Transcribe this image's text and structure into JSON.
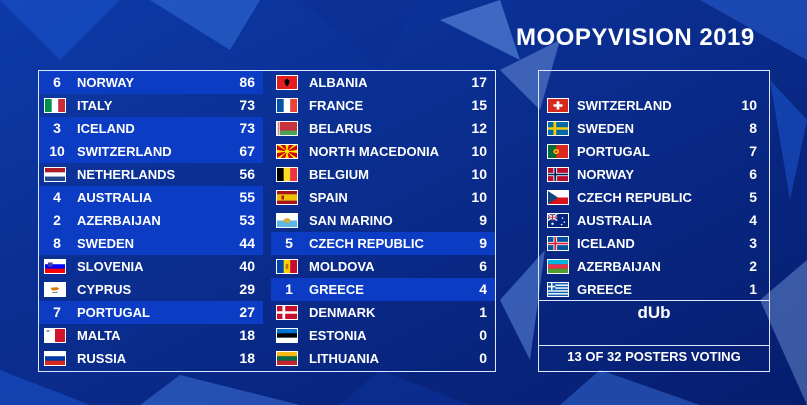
{
  "title": "MOOPYVISION 2019",
  "scoreboard": [
    {
      "country": "NORWAY",
      "score": "86",
      "points_received": "6",
      "highlight": true,
      "flag": "norway-flag"
    },
    {
      "country": "ITALY",
      "score": "73",
      "points_received": "",
      "highlight": false,
      "flag": "italy-flag"
    },
    {
      "country": "ICELAND",
      "score": "73",
      "points_received": "3",
      "highlight": true,
      "flag": "iceland-flag"
    },
    {
      "country": "SWITZERLAND",
      "score": "67",
      "points_received": "10",
      "highlight": true,
      "flag": "switzerland-flag"
    },
    {
      "country": "NETHERLANDS",
      "score": "56",
      "points_received": "",
      "highlight": false,
      "flag": "netherlands-flag"
    },
    {
      "country": "AUSTRALIA",
      "score": "55",
      "points_received": "4",
      "highlight": true,
      "flag": "australia-flag"
    },
    {
      "country": "AZERBAIJAN",
      "score": "53",
      "points_received": "2",
      "highlight": true,
      "flag": "azerbaijan-flag"
    },
    {
      "country": "SWEDEN",
      "score": "44",
      "points_received": "8",
      "highlight": true,
      "flag": "sweden-flag"
    },
    {
      "country": "SLOVENIA",
      "score": "40",
      "points_received": "",
      "highlight": false,
      "flag": "slovenia-flag"
    },
    {
      "country": "CYPRUS",
      "score": "29",
      "points_received": "",
      "highlight": false,
      "flag": "cyprus-flag"
    },
    {
      "country": "PORTUGAL",
      "score": "27",
      "points_received": "7",
      "highlight": true,
      "flag": "portugal-flag"
    },
    {
      "country": "MALTA",
      "score": "18",
      "points_received": "",
      "highlight": false,
      "flag": "malta-flag"
    },
    {
      "country": "RUSSIA",
      "score": "18",
      "points_received": "",
      "highlight": false,
      "flag": "russia-flag"
    },
    {
      "country": "ALBANIA",
      "score": "17",
      "points_received": "",
      "highlight": false,
      "flag": "albania-flag"
    },
    {
      "country": "FRANCE",
      "score": "15",
      "points_received": "",
      "highlight": false,
      "flag": "france-flag"
    },
    {
      "country": "BELARUS",
      "score": "12",
      "points_received": "",
      "highlight": false,
      "flag": "belarus-flag"
    },
    {
      "country": "NORTH MACEDONIA",
      "score": "10",
      "points_received": "",
      "highlight": false,
      "flag": "north-macedonia-flag"
    },
    {
      "country": "BELGIUM",
      "score": "10",
      "points_received": "",
      "highlight": false,
      "flag": "belgium-flag"
    },
    {
      "country": "SPAIN",
      "score": "10",
      "points_received": "",
      "highlight": false,
      "flag": "spain-flag"
    },
    {
      "country": "SAN MARINO",
      "score": "9",
      "points_received": "",
      "highlight": false,
      "flag": "san-marino-flag"
    },
    {
      "country": "CZECH REPUBLIC",
      "score": "9",
      "points_received": "5",
      "highlight": true,
      "flag": "czech-republic-flag"
    },
    {
      "country": "MOLDOVA",
      "score": "6",
      "points_received": "",
      "highlight": false,
      "flag": "moldova-flag"
    },
    {
      "country": "GREECE",
      "score": "4",
      "points_received": "1",
      "highlight": true,
      "flag": "greece-flag"
    },
    {
      "country": "DENMARK",
      "score": "1",
      "points_received": "",
      "highlight": false,
      "flag": "denmark-flag"
    },
    {
      "country": "ESTONIA",
      "score": "0",
      "points_received": "",
      "highlight": false,
      "flag": "estonia-flag"
    },
    {
      "country": "LITHUANIA",
      "score": "0",
      "points_received": "",
      "highlight": false,
      "flag": "lithuania-flag"
    }
  ],
  "votes": [
    {
      "country": "SWITZERLAND",
      "points": "10",
      "flag": "switzerland-flag"
    },
    {
      "country": "SWEDEN",
      "points": "8",
      "flag": "sweden-flag"
    },
    {
      "country": "PORTUGAL",
      "points": "7",
      "flag": "portugal-flag"
    },
    {
      "country": "NORWAY",
      "points": "6",
      "flag": "norway-flag"
    },
    {
      "country": "CZECH REPUBLIC",
      "points": "5",
      "flag": "czech-republic-flag"
    },
    {
      "country": "AUSTRALIA",
      "points": "4",
      "flag": "australia-flag"
    },
    {
      "country": "ICELAND",
      "points": "3",
      "flag": "iceland-flag"
    },
    {
      "country": "AZERBAIJAN",
      "points": "2",
      "flag": "azerbaijan-flag"
    },
    {
      "country": "GREECE",
      "points": "1",
      "flag": "greece-flag"
    }
  ],
  "voter": "dUb",
  "voting_status": "13 OF 32 POSTERS VOTING",
  "colors": {
    "background": "#0a2a8a",
    "highlight": "#0c3cc4",
    "text": "#ffffff",
    "border": "#dfe6ff"
  }
}
